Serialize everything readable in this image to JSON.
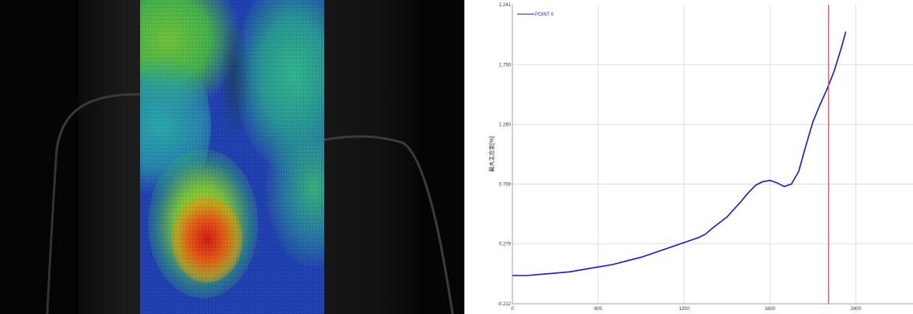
{
  "colors": {
    "series": "#1515e6",
    "cursor": "#e84040",
    "grid": "#d6d6d6",
    "strain_low": "#1f3fb0",
    "strain_mid": "#2fbf6a",
    "strain_high": "#d21a14"
  },
  "strain_map": {
    "colormap": [
      "blue",
      "cyan",
      "green",
      "yellow",
      "orange",
      "red"
    ],
    "peak_color": "red"
  },
  "chart_data": {
    "type": "line",
    "title": "",
    "xlabel": "",
    "ylabel": "最大主应变[%]",
    "xlim": [
      0,
      2800
    ],
    "ylim": [
      -0.212,
      2.241
    ],
    "grid": true,
    "legend_position": "top-left",
    "x_ticks": [
      "0",
      "600",
      "1200",
      "1800",
      "2400"
    ],
    "y_ticks": [
      "-0.212",
      "0.279",
      "0.769",
      "1.260",
      "1.750",
      "2.241"
    ],
    "cursor_x": 2210,
    "series": [
      {
        "name": "POINT 0",
        "x": [
          0,
          100,
          200,
          300,
          400,
          500,
          600,
          700,
          800,
          900,
          1000,
          1100,
          1200,
          1300,
          1350,
          1400,
          1500,
          1600,
          1650,
          1700,
          1750,
          1800,
          1850,
          1900,
          1950,
          2000,
          2050,
          2100,
          2150,
          2200,
          2250,
          2300,
          2330
        ],
        "y": [
          0.02,
          0.02,
          0.03,
          0.04,
          0.05,
          0.07,
          0.09,
          0.11,
          0.14,
          0.17,
          0.21,
          0.25,
          0.29,
          0.33,
          0.36,
          0.41,
          0.5,
          0.63,
          0.7,
          0.76,
          0.79,
          0.8,
          0.78,
          0.75,
          0.77,
          0.87,
          1.08,
          1.28,
          1.42,
          1.55,
          1.7,
          1.89,
          2.02
        ]
      }
    ]
  }
}
